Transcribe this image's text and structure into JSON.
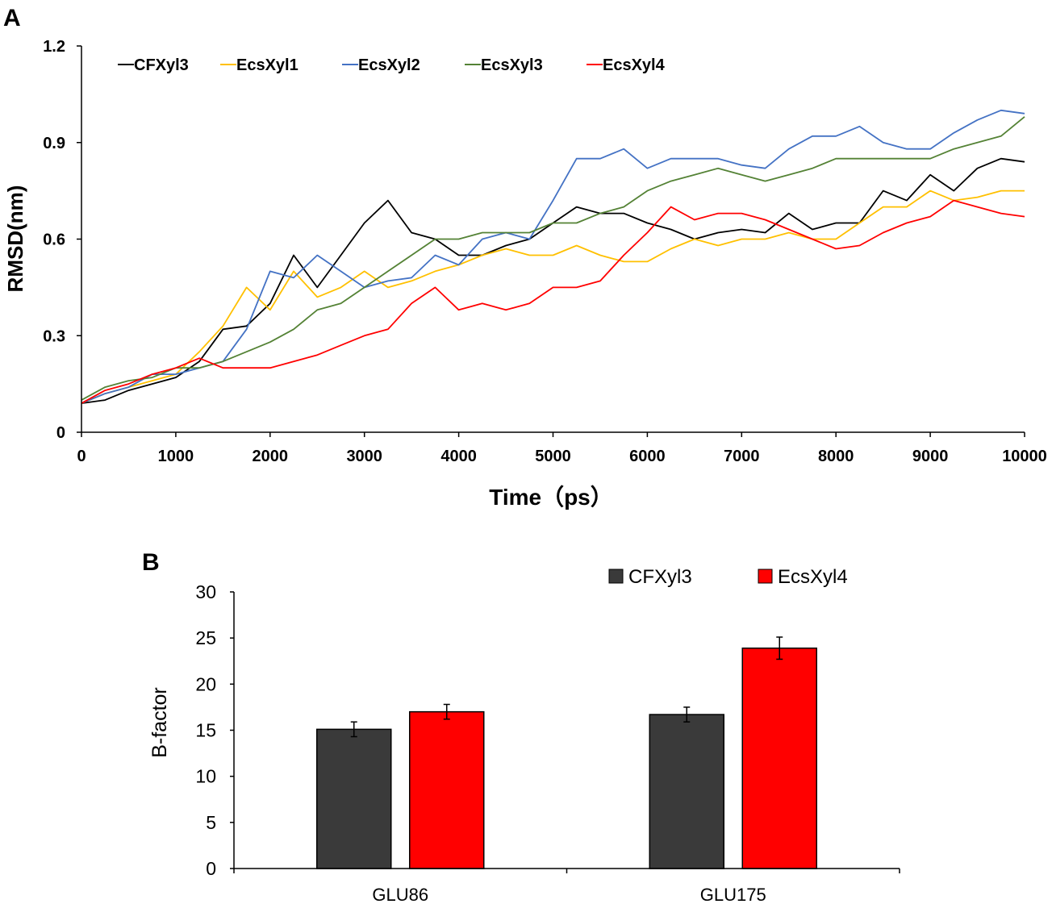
{
  "chart_data": [
    {
      "panel_label": "A",
      "type": "line",
      "title": "",
      "xlabel": "Time（ps）",
      "ylabel": "RMSD(nm)",
      "xlim": [
        0,
        10000
      ],
      "ylim": [
        0,
        1.2
      ],
      "xticks": [
        "0",
        "1000",
        "2000",
        "3000",
        "4000",
        "5000",
        "6000",
        "7000",
        "8000",
        "9000",
        "10000"
      ],
      "yticks": [
        "0",
        "0.3",
        "0.6",
        "0.9",
        "1.2"
      ],
      "legend_placement": "top-left",
      "x": [
        0,
        250,
        500,
        750,
        1000,
        1250,
        1500,
        1750,
        2000,
        2250,
        2500,
        2750,
        3000,
        3250,
        3500,
        3750,
        4000,
        4250,
        4500,
        4750,
        5000,
        5250,
        5500,
        5750,
        6000,
        6250,
        6500,
        6750,
        7000,
        7250,
        7500,
        7750,
        8000,
        8250,
        8500,
        8750,
        9000,
        9250,
        9500,
        9750,
        10000
      ],
      "series": [
        {
          "name": "CFXyl3",
          "color": "#000000",
          "values": [
            0.09,
            0.1,
            0.13,
            0.15,
            0.17,
            0.22,
            0.32,
            0.33,
            0.4,
            0.55,
            0.45,
            0.55,
            0.65,
            0.72,
            0.62,
            0.6,
            0.55,
            0.55,
            0.58,
            0.6,
            0.65,
            0.7,
            0.68,
            0.68,
            0.65,
            0.63,
            0.6,
            0.62,
            0.63,
            0.62,
            0.68,
            0.63,
            0.65,
            0.65,
            0.75,
            0.72,
            0.8,
            0.75,
            0.82,
            0.85,
            0.84
          ]
        },
        {
          "name": "EcsXyl1",
          "color": "#FFC000",
          "values": [
            0.09,
            0.12,
            0.14,
            0.16,
            0.18,
            0.25,
            0.33,
            0.45,
            0.38,
            0.5,
            0.42,
            0.45,
            0.5,
            0.45,
            0.47,
            0.5,
            0.52,
            0.55,
            0.57,
            0.55,
            0.55,
            0.58,
            0.55,
            0.53,
            0.53,
            0.57,
            0.6,
            0.58,
            0.6,
            0.6,
            0.62,
            0.6,
            0.6,
            0.65,
            0.7,
            0.7,
            0.75,
            0.72,
            0.73,
            0.75,
            0.75
          ]
        },
        {
          "name": "EcsXyl2",
          "color": "#4472C4",
          "values": [
            0.09,
            0.12,
            0.14,
            0.18,
            0.18,
            0.2,
            0.22,
            0.32,
            0.5,
            0.48,
            0.55,
            0.5,
            0.45,
            0.47,
            0.48,
            0.55,
            0.52,
            0.6,
            0.62,
            0.6,
            0.72,
            0.85,
            0.85,
            0.88,
            0.82,
            0.85,
            0.85,
            0.85,
            0.83,
            0.82,
            0.88,
            0.92,
            0.92,
            0.95,
            0.9,
            0.88,
            0.88,
            0.93,
            0.97,
            1.0,
            0.99
          ]
        },
        {
          "name": "EcsXyl3",
          "color": "#548235",
          "values": [
            0.1,
            0.14,
            0.16,
            0.17,
            0.2,
            0.2,
            0.22,
            0.25,
            0.28,
            0.32,
            0.38,
            0.4,
            0.45,
            0.5,
            0.55,
            0.6,
            0.6,
            0.62,
            0.62,
            0.62,
            0.65,
            0.65,
            0.68,
            0.7,
            0.75,
            0.78,
            0.8,
            0.82,
            0.8,
            0.78,
            0.8,
            0.82,
            0.85,
            0.85,
            0.85,
            0.85,
            0.85,
            0.88,
            0.9,
            0.92,
            0.98
          ]
        },
        {
          "name": "EcsXyl4",
          "color": "#FF0000",
          "values": [
            0.09,
            0.13,
            0.15,
            0.18,
            0.2,
            0.23,
            0.2,
            0.2,
            0.2,
            0.22,
            0.24,
            0.27,
            0.3,
            0.32,
            0.4,
            0.45,
            0.38,
            0.4,
            0.38,
            0.4,
            0.45,
            0.45,
            0.47,
            0.55,
            0.62,
            0.7,
            0.66,
            0.68,
            0.68,
            0.66,
            0.63,
            0.6,
            0.57,
            0.58,
            0.62,
            0.65,
            0.67,
            0.72,
            0.7,
            0.68,
            0.67
          ]
        }
      ]
    },
    {
      "panel_label": "B",
      "type": "bar",
      "title": "",
      "xlabel": "",
      "ylabel": "B-factor",
      "ylim": [
        0,
        30
      ],
      "yticks": [
        "0",
        "5",
        "10",
        "15",
        "20",
        "25",
        "30"
      ],
      "categories": [
        "GLU86",
        "GLU175"
      ],
      "legend_placement": "top-right",
      "series": [
        {
          "name": "CFXyl3",
          "color": "#3A3A3A",
          "values": [
            15.1,
            16.7
          ],
          "errors": [
            0.8,
            0.8
          ]
        },
        {
          "name": "EcsXyl4",
          "color": "#FF0000",
          "values": [
            17.0,
            23.9
          ],
          "errors": [
            0.8,
            1.2
          ]
        }
      ]
    }
  ]
}
